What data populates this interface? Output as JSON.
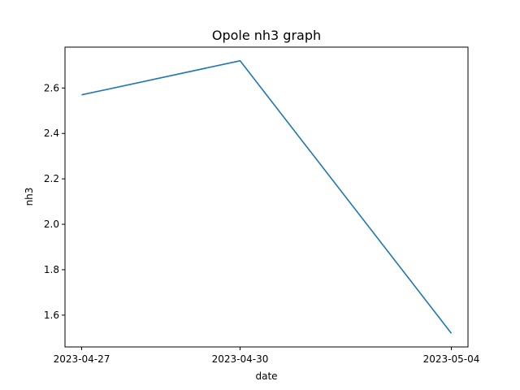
{
  "chart_data": {
    "type": "line",
    "title": "Opole nh3 graph",
    "xlabel": "date",
    "ylabel": "nh3",
    "categories": [
      "2023-04-27",
      "2023-04-30",
      "2023-05-04"
    ],
    "series": [
      {
        "values": [
          2.57,
          2.72,
          1.52
        ]
      }
    ],
    "ylim": [
      1.46,
      2.78
    ],
    "yticks": [
      "1.6",
      "1.8",
      "2.0",
      "2.2",
      "2.4",
      "2.6"
    ],
    "grid": false,
    "line_color": "#1f77b4"
  }
}
